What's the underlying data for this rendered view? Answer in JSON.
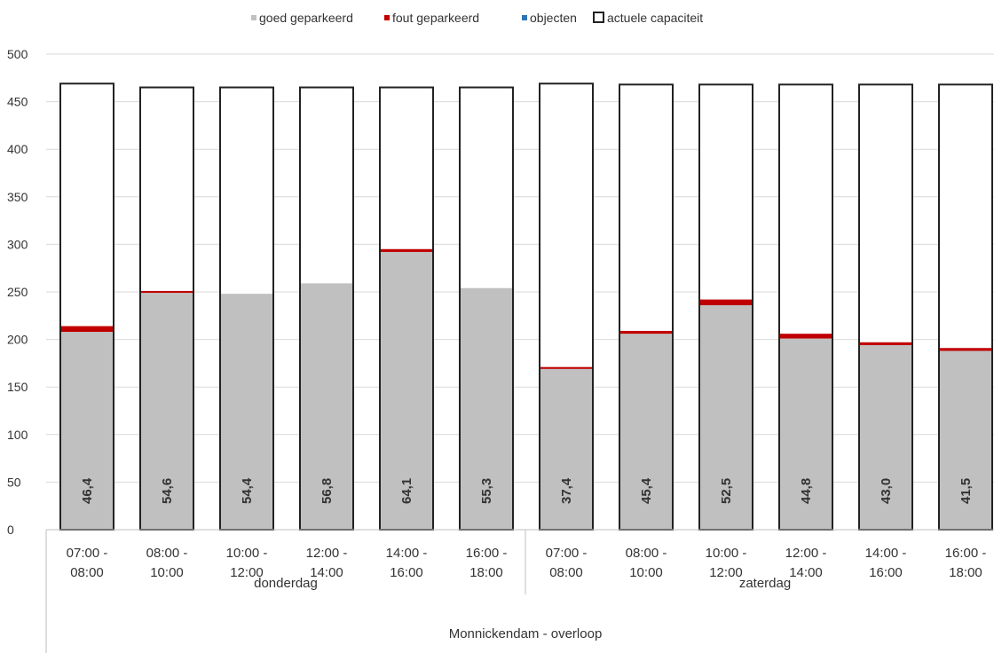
{
  "chart_data": {
    "type": "bar",
    "stacked": true,
    "ylim": [
      0,
      500
    ],
    "yticks": [
      0,
      50,
      100,
      150,
      200,
      250,
      300,
      350,
      400,
      450,
      500
    ],
    "grid": true,
    "legend_position": "top",
    "categories": [
      {
        "line1": "07:00 -",
        "line2": "08:00"
      },
      {
        "line1": "08:00 -",
        "line2": "10:00"
      },
      {
        "line1": "10:00 -",
        "line2": "12:00"
      },
      {
        "line1": "12:00 -",
        "line2": "14:00"
      },
      {
        "line1": "14:00 -",
        "line2": "16:00"
      },
      {
        "line1": "16:00 -",
        "line2": "18:00"
      },
      {
        "line1": "07:00 -",
        "line2": "08:00"
      },
      {
        "line1": "08:00 -",
        "line2": "10:00"
      },
      {
        "line1": "10:00 -",
        "line2": "12:00"
      },
      {
        "line1": "12:00 -",
        "line2": "14:00"
      },
      {
        "line1": "14:00 -",
        "line2": "16:00"
      },
      {
        "line1": "16:00 -",
        "line2": "18:00"
      }
    ],
    "groups": [
      {
        "label": "donderdag",
        "count": 6
      },
      {
        "label": "zaterdag",
        "count": 6
      }
    ],
    "outer_group": "Monnickendam - overloop",
    "series": [
      {
        "name": "goed geparkeerd",
        "color": "#c0c0c0",
        "values": [
          208,
          249,
          248,
          259,
          292,
          254,
          169,
          206,
          236,
          201,
          194,
          188
        ]
      },
      {
        "name": "fout geparkeerd",
        "color": "#c00000",
        "values": [
          6,
          2,
          0,
          0,
          3,
          0,
          2,
          3,
          6,
          5,
          3,
          3
        ]
      },
      {
        "name": "objecten",
        "color": "#2e75b6",
        "values": [
          0,
          0,
          0,
          0,
          0,
          0,
          0,
          0,
          0,
          0,
          0,
          0
        ]
      }
    ],
    "capacity": {
      "name": "actuele capaciteit",
      "values": [
        469,
        465,
        465,
        465,
        465,
        465,
        469,
        468,
        468,
        468,
        468,
        468
      ]
    },
    "data_labels": [
      "46,4",
      "54,6",
      "54,4",
      "56,8",
      "64,1",
      "55,3",
      "37,4",
      "45,4",
      "52,5",
      "44,8",
      "43,0",
      "41,5"
    ]
  }
}
